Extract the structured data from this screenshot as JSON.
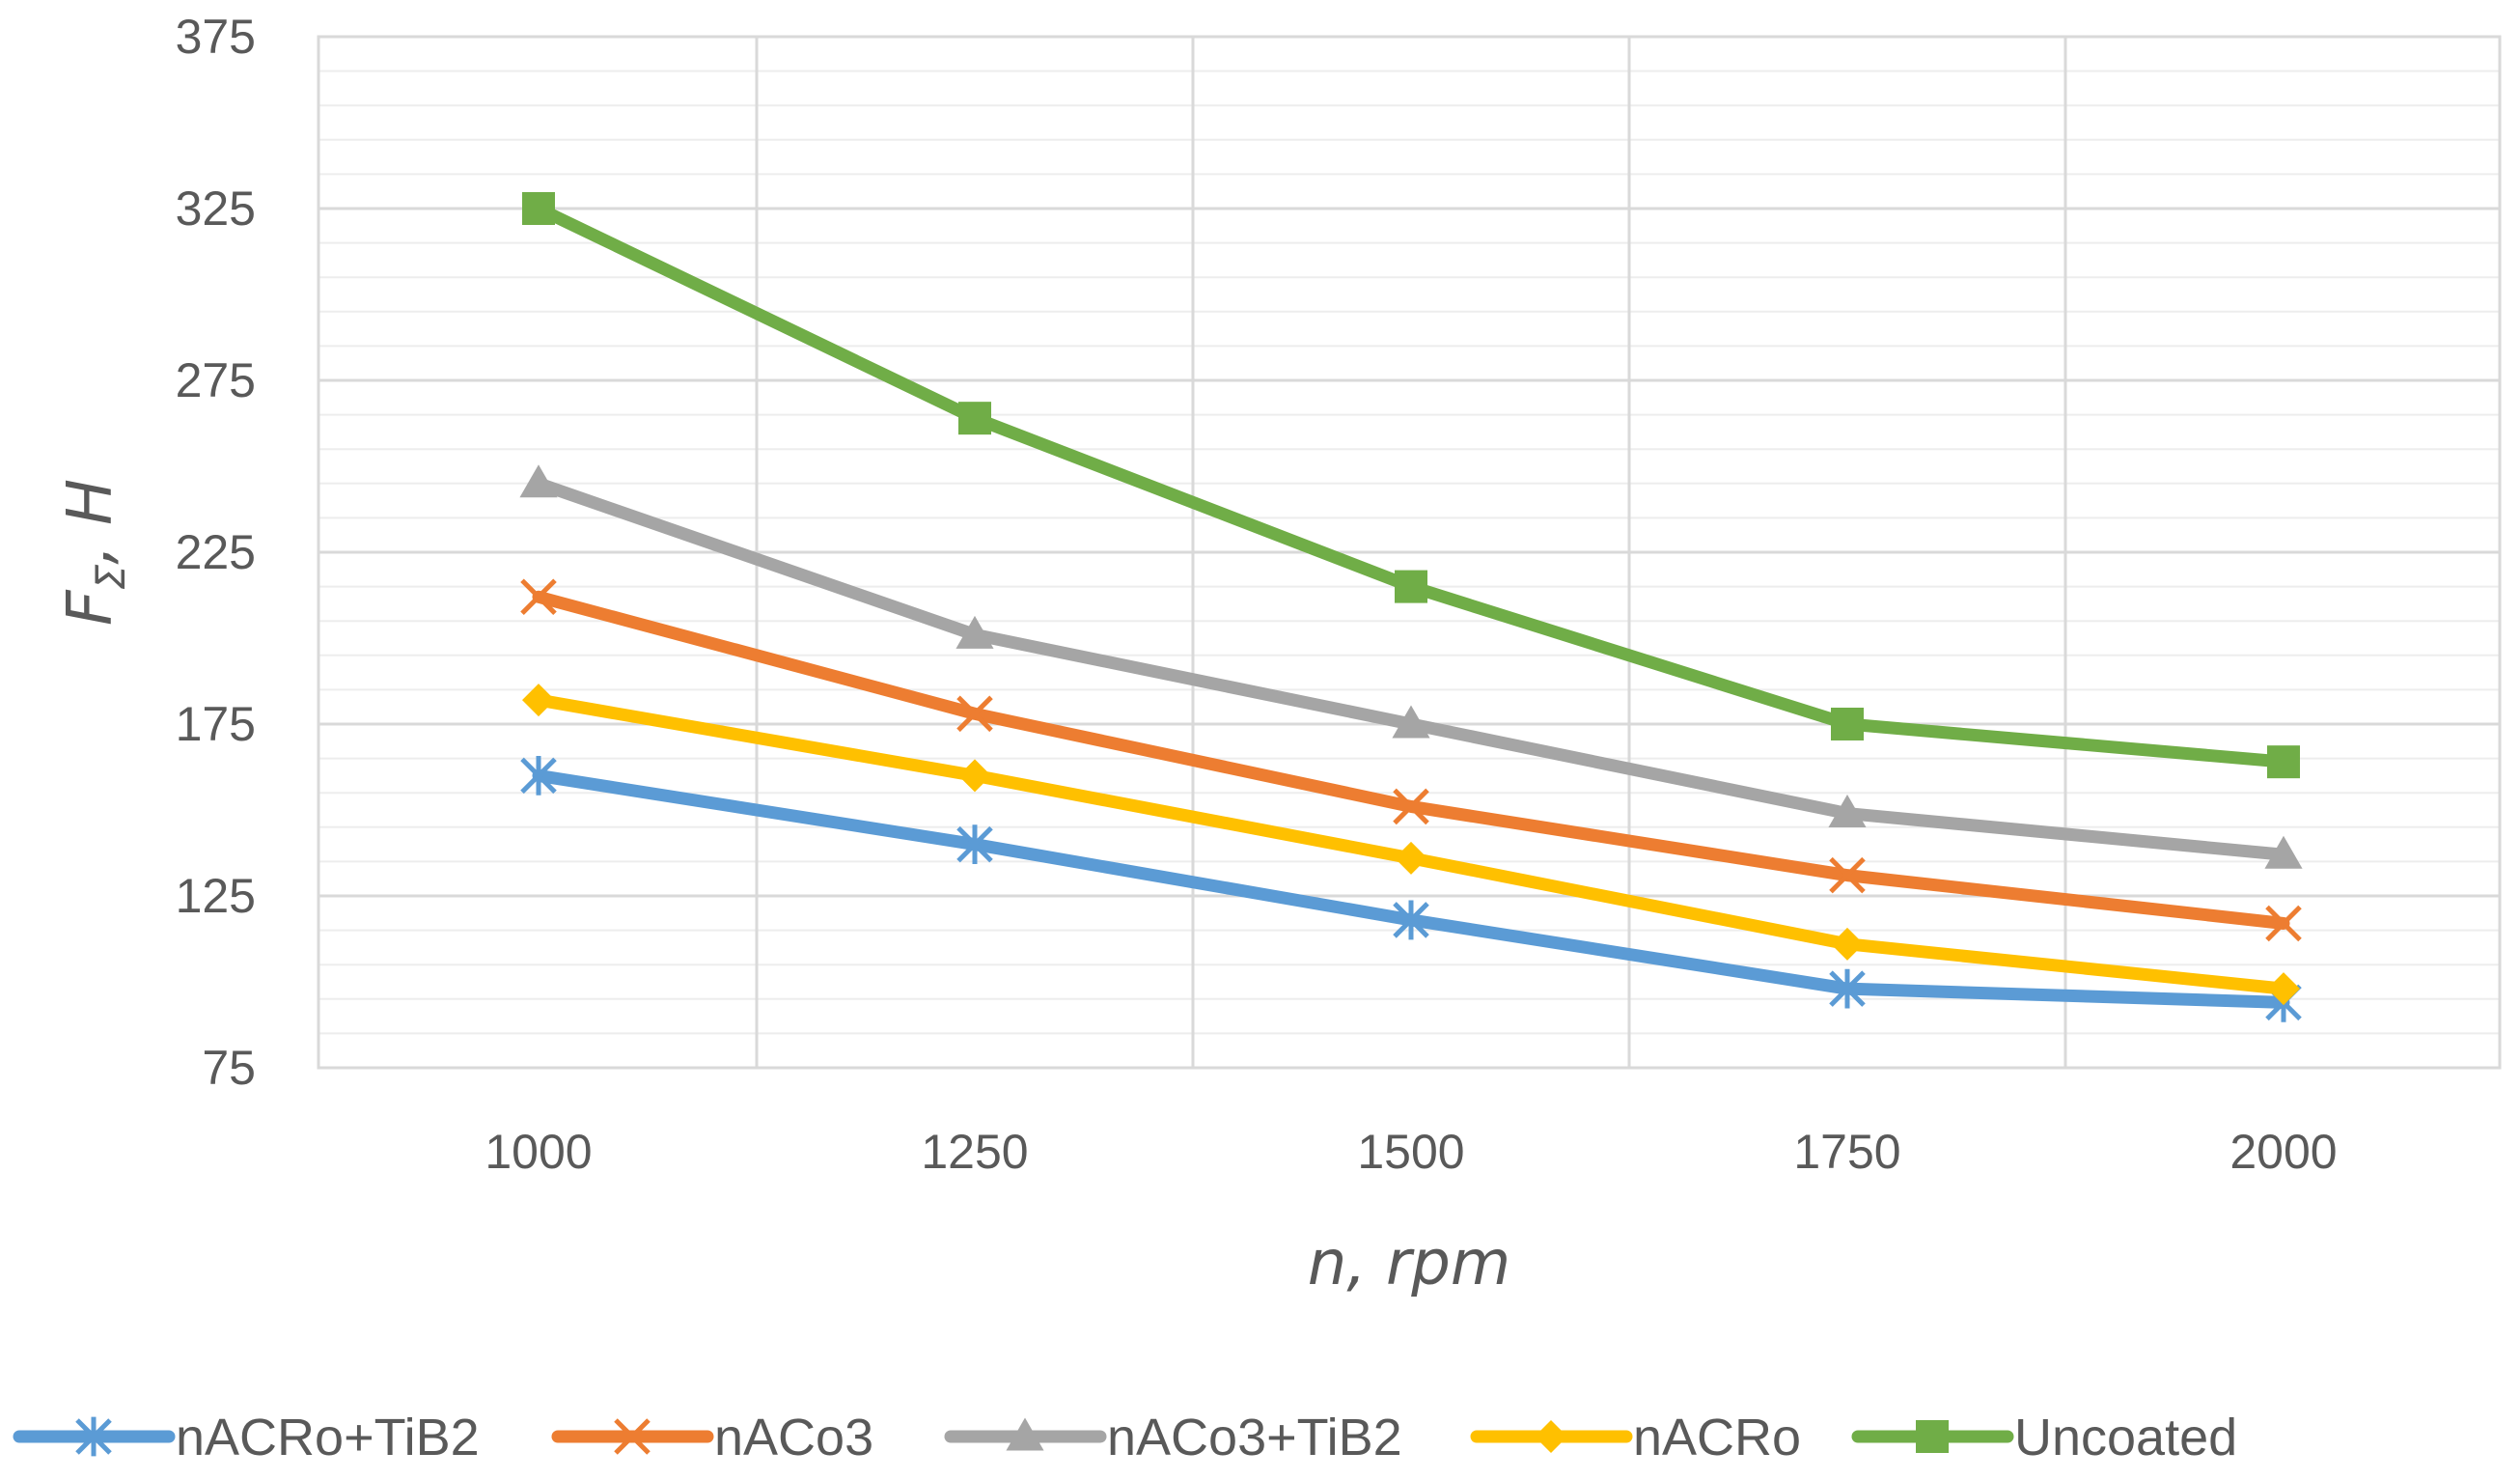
{
  "chart_data": {
    "type": "line",
    "title": "",
    "xlabel": "n, rpm",
    "ylabel": "FΣ, H",
    "ylabel_main": "F",
    "ylabel_sub": "Σ",
    "ylabel_rest": ", H",
    "x": [
      1000,
      1250,
      1500,
      1750,
      2000
    ],
    "x_tick_labels": [
      "1000",
      "1250",
      "1500",
      "1750",
      "2000"
    ],
    "ylim": [
      75,
      375
    ],
    "y_ticks": [
      75,
      125,
      175,
      225,
      275,
      325,
      375
    ],
    "y_tick_labels": [
      "75",
      "125",
      "175",
      "225",
      "275",
      "325",
      "375"
    ],
    "y_minor_step": 10,
    "grid": true,
    "legend_position": "bottom",
    "series": [
      {
        "name": "nACRo+TiB2",
        "marker": "asterisk",
        "color": "#5B9BD5",
        "values": [
          160,
          140,
          118,
          98,
          94
        ]
      },
      {
        "name": "nACo3",
        "marker": "x",
        "color": "#ED7D31",
        "values": [
          212,
          178,
          151,
          131,
          117
        ]
      },
      {
        "name": "nACo3+TiB2",
        "marker": "triangle",
        "color": "#A5A5A5",
        "values": [
          245,
          201,
          175,
          149,
          137
        ]
      },
      {
        "name": "nACRo",
        "marker": "diamond",
        "color": "#FFC000",
        "values": [
          182,
          160,
          136,
          111,
          98
        ]
      },
      {
        "name": "Uncoated",
        "marker": "square",
        "color": "#70AD47",
        "values": [
          325,
          264,
          215,
          175,
          164
        ]
      }
    ]
  }
}
